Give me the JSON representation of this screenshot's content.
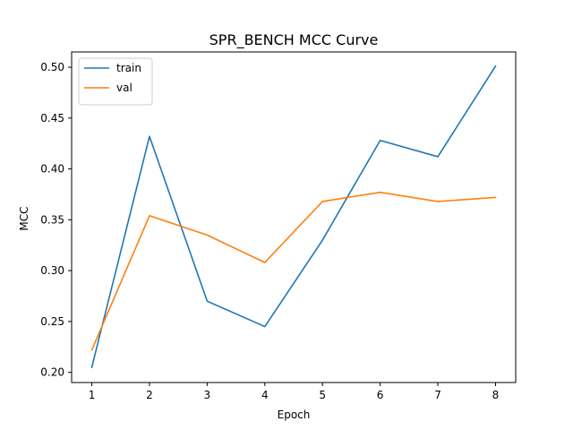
{
  "chart_data": {
    "type": "line",
    "title": "SPR_BENCH MCC Curve",
    "xlabel": "Epoch",
    "ylabel": "MCC",
    "x": [
      1,
      2,
      3,
      4,
      5,
      6,
      7,
      8
    ],
    "xticks": [
      "1",
      "2",
      "3",
      "4",
      "5",
      "6",
      "7",
      "8"
    ],
    "yticks": [
      "0.20",
      "0.25",
      "0.30",
      "0.35",
      "0.40",
      "0.45",
      "0.50"
    ],
    "xlim": [
      0.65,
      8.35
    ],
    "ylim": [
      0.19,
      0.515
    ],
    "grid": false,
    "legend_position": "top-left",
    "series": [
      {
        "name": "train",
        "color": "#1f77b4",
        "values": [
          0.205,
          0.432,
          0.27,
          0.245,
          0.33,
          0.428,
          0.412,
          0.501
        ]
      },
      {
        "name": "val",
        "color": "#ff7f0e",
        "values": [
          0.222,
          0.354,
          0.335,
          0.308,
          0.368,
          0.377,
          0.368,
          0.372
        ]
      }
    ]
  }
}
